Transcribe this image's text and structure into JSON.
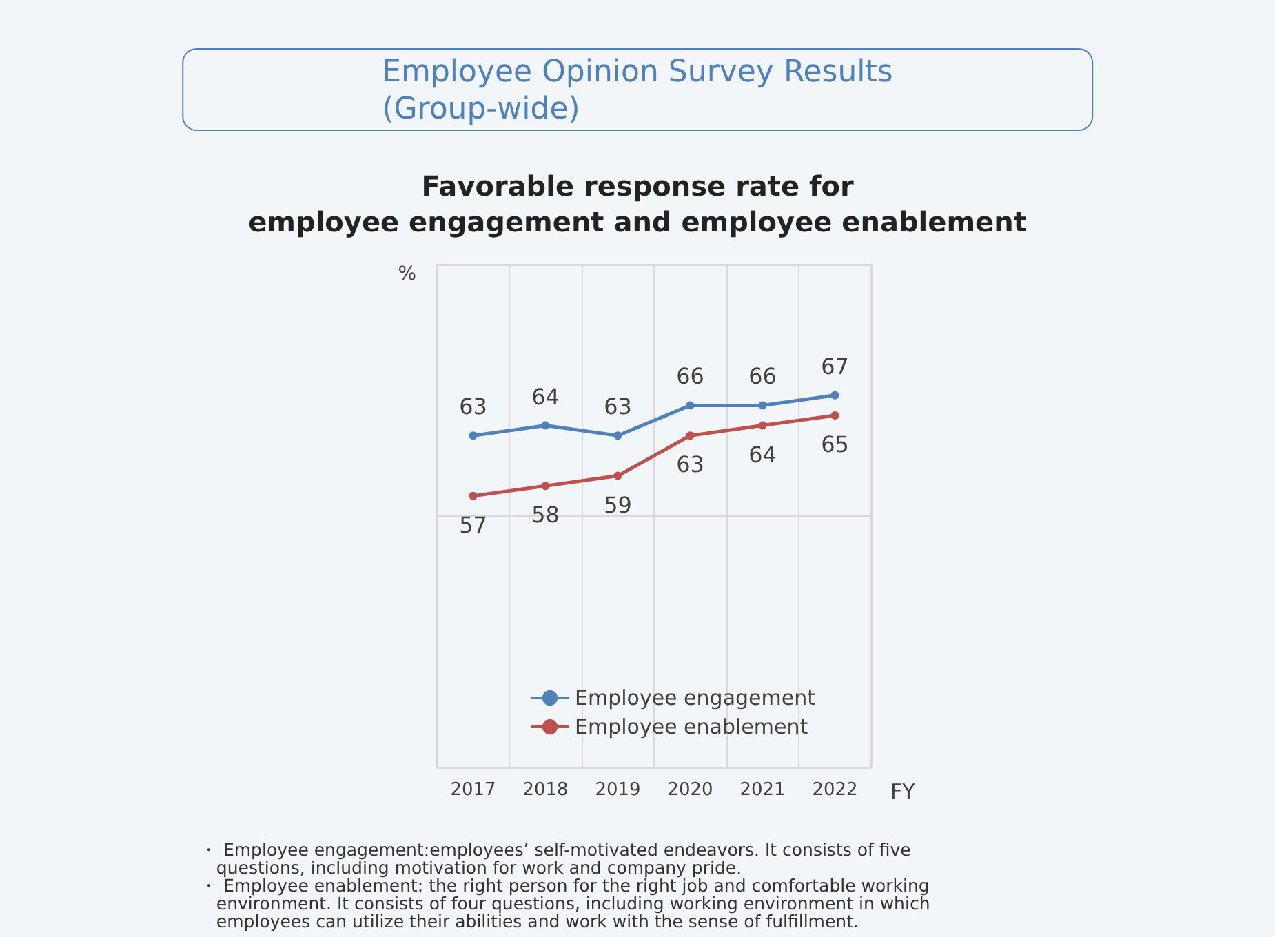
{
  "chart_data": {
    "type": "line",
    "title": "Employee Opinion Survey Results\n(Group-wide)",
    "subtitle": "Favorable response rate for\nemployee engagement and employee enablement",
    "categories": [
      "2017",
      "2018",
      "2019",
      "2020",
      "2021",
      "2022"
    ],
    "series": [
      {
        "name": "Employee engagement",
        "color": "#4f81bd",
        "values": [
          63,
          64,
          63,
          66,
          66,
          67
        ]
      },
      {
        "name": "Employee enablement",
        "color": "#c0504d",
        "values": [
          57,
          58,
          59,
          63,
          64,
          65
        ]
      }
    ],
    "data_labels": true,
    "ylabel": "%",
    "xlabel": "FY",
    "ylim": [
      30,
      80
    ],
    "yticks": [
      {
        "value": 30,
        "label": null
      },
      {
        "value": 55,
        "label": null
      },
      {
        "value": 80,
        "label": null
      }
    ],
    "tick_labels": "x",
    "grid": true,
    "legend": "bottom",
    "marker": "circle",
    "line_style": "solid",
    "annotations": [
      "・ Employee engagement:employees’ self-motivated endeavors. It consists of five\n   questions, including motivation for work and company pride.\n・ Employee enablement: the right person for the right job and comfortable working\n   environment. It consists of four questions, including working environment in which\n   employees can utilize their abilities and work with the sense of fulfillment."
    ]
  }
}
